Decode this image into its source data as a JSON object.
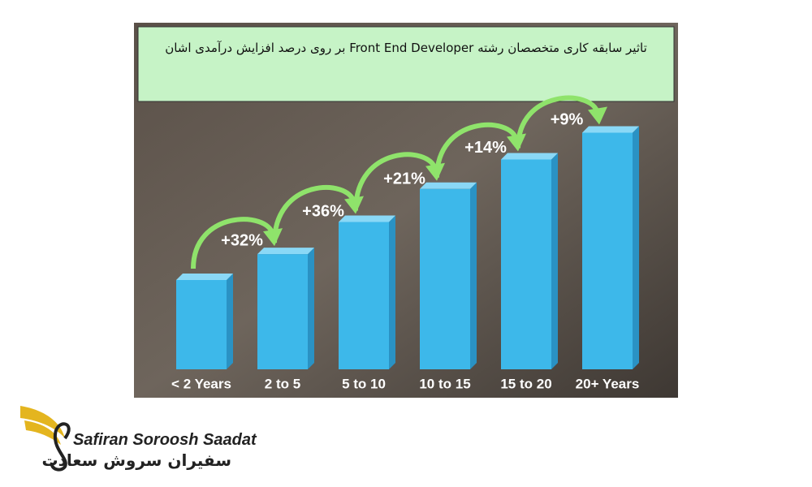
{
  "chart_data": {
    "type": "bar3d",
    "title": "تاثیر سابقه کاری متخصصان رشته Front End Developer بر روی درصد افزایش درآمدی اشان",
    "categories": [
      "< 2 Years",
      "2 to 5",
      "5 to 10",
      "10 to 15",
      "15 to 20",
      "20+ Years"
    ],
    "values": [
      100,
      129,
      165,
      202,
      235,
      265
    ],
    "color": "#3db8ea",
    "ylim": [
      0,
      300
    ],
    "increases": {
      "values": [
        32,
        36,
        21,
        14,
        9
      ],
      "value_labels": [
        "+32%",
        "+36%",
        "+21%",
        "+14%",
        "+9%"
      ],
      "color": "#8fe36b"
    }
  },
  "logo": {
    "name": "Safiran Soroosh Saadat",
    "name_fa": "سفیران سروش سعادت"
  }
}
